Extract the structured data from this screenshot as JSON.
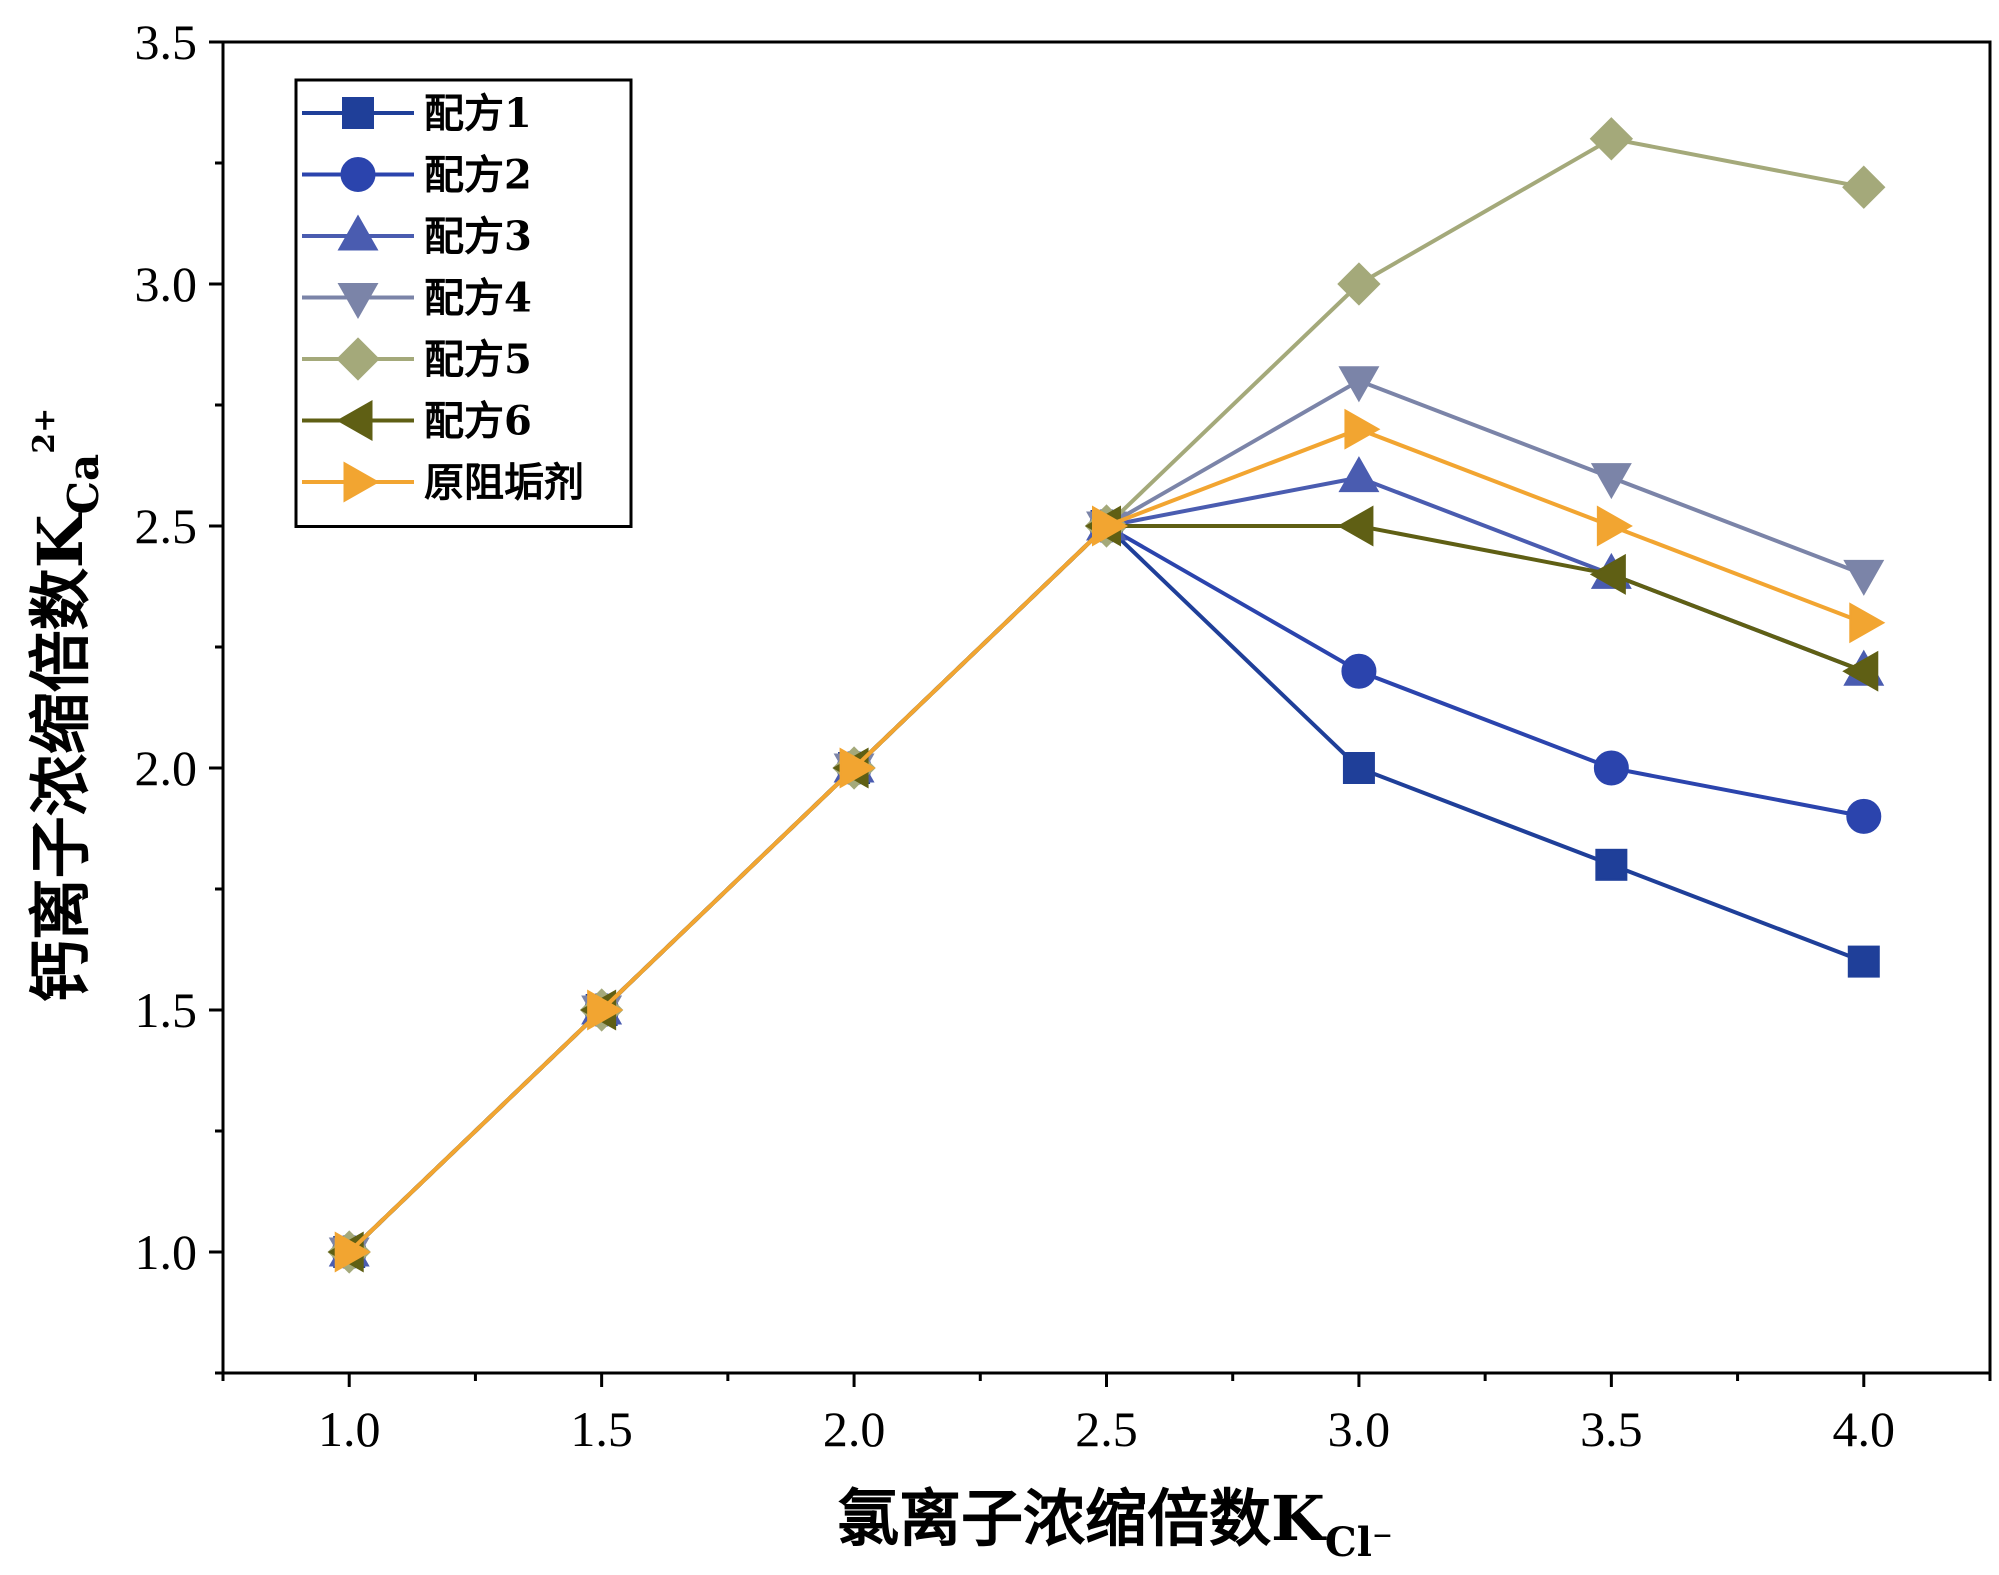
{
  "chart_data": {
    "type": "line",
    "title": "",
    "xlabel": "氯离子浓缩倍数K",
    "xlabel_sub": "Cl⁻",
    "ylabel": "钙离子浓缩倍数K",
    "ylabel_sub": "Ca",
    "ylabel_sup": "2+",
    "xlim": [
      0.75,
      4.25
    ],
    "ylim": [
      0.75,
      3.5
    ],
    "x_ticks": [
      1.0,
      1.5,
      2.0,
      2.5,
      3.0,
      3.5,
      4.0
    ],
    "x_tick_labels": [
      "1.0",
      "1.5",
      "2.0",
      "2.5",
      "3.0",
      "3.5",
      "4.0"
    ],
    "y_ticks": [
      1.0,
      1.5,
      2.0,
      2.5,
      3.0,
      3.5
    ],
    "y_tick_labels": [
      "1.0",
      "1.5",
      "2.0",
      "2.5",
      "3.0",
      "3.5"
    ],
    "legend_position": "top-left",
    "series": [
      {
        "name": "配方1",
        "color": "#1f3f99",
        "marker": "square",
        "x": [
          1.0,
          1.5,
          2.0,
          2.5,
          3.0,
          3.5,
          4.0
        ],
        "y": [
          1.0,
          1.5,
          2.0,
          2.5,
          2.0,
          1.8,
          1.6
        ]
      },
      {
        "name": "配方2",
        "color": "#2b44ad",
        "marker": "circle",
        "x": [
          1.0,
          1.5,
          2.0,
          2.5,
          3.0,
          3.5,
          4.0
        ],
        "y": [
          1.0,
          1.5,
          2.0,
          2.5,
          2.2,
          2.0,
          1.9
        ]
      },
      {
        "name": "配方3",
        "color": "#4a5cb0",
        "marker": "triangle-up",
        "x": [
          1.0,
          1.5,
          2.0,
          2.5,
          3.0,
          3.5,
          4.0
        ],
        "y": [
          1.0,
          1.5,
          2.0,
          2.5,
          2.6,
          2.4,
          2.2
        ]
      },
      {
        "name": "配方4",
        "color": "#7b84a8",
        "marker": "triangle-down",
        "x": [
          1.0,
          1.5,
          2.0,
          2.5,
          3.0,
          3.5,
          4.0
        ],
        "y": [
          1.0,
          1.5,
          2.0,
          2.5,
          2.8,
          2.6,
          2.4
        ]
      },
      {
        "name": "配方5",
        "color": "#a4a97a",
        "marker": "diamond",
        "x": [
          1.0,
          1.5,
          2.0,
          2.5,
          3.0,
          3.5,
          4.0
        ],
        "y": [
          1.0,
          1.5,
          2.0,
          2.5,
          3.0,
          3.3,
          3.2
        ]
      },
      {
        "name": "配方6",
        "color": "#5f5f14",
        "marker": "triangle-left",
        "x": [
          1.0,
          1.5,
          2.0,
          2.5,
          3.0,
          3.5,
          4.0
        ],
        "y": [
          1.0,
          1.5,
          2.0,
          2.5,
          2.5,
          2.4,
          2.2
        ]
      },
      {
        "name": "原阻垢剂",
        "color": "#f2a531",
        "marker": "triangle-right",
        "x": [
          1.0,
          1.5,
          2.0,
          2.5,
          3.0,
          3.5,
          4.0
        ],
        "y": [
          1.0,
          1.5,
          2.0,
          2.5,
          2.7,
          2.5,
          2.3
        ]
      }
    ]
  }
}
